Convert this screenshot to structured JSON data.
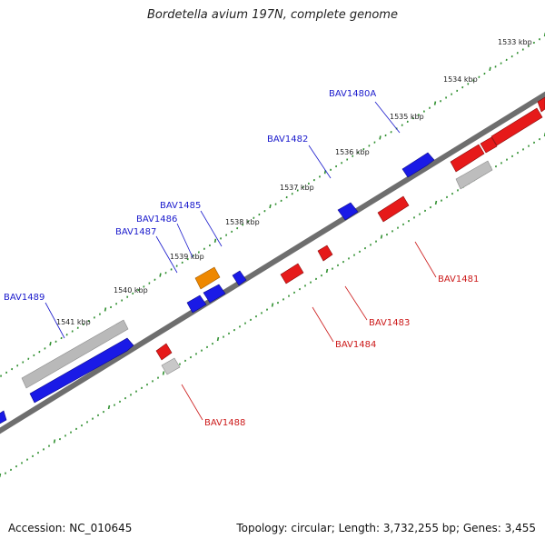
{
  "title": "Bordetella avium 197N, complete genome",
  "accession": "Accession: NC_010645",
  "summary": "Topology: circular; Length: 3,732,255 bp; Genes: 3,455",
  "colors": {
    "backbone": "#7a7a7a",
    "tick": "#2f8f2f",
    "forward_gene": "#1a1ae6",
    "reverse_gene": "#e61a1a",
    "rna_gene": "#ee8800",
    "pseudo_gene": "#bdbdbd",
    "forward_label": "#1a1acc",
    "reverse_label": "#cc1a1a",
    "kbp_label": "#222222"
  },
  "kbp_labels": [
    "1533 kbp",
    "1534 kbp",
    "1535 kbp",
    "1536 kbp",
    "1537 kbp",
    "1538 kbp",
    "1539 kbp",
    "1540 kbp",
    "1541 kbp"
  ],
  "genes": {
    "forward": [
      "BAV1480A",
      "BAV1482",
      "BAV1485",
      "BAV1486",
      "BAV1487",
      "BAV1489"
    ],
    "reverse": [
      "BAV1481",
      "BAV1483",
      "BAV1484",
      "BAV1488"
    ]
  }
}
